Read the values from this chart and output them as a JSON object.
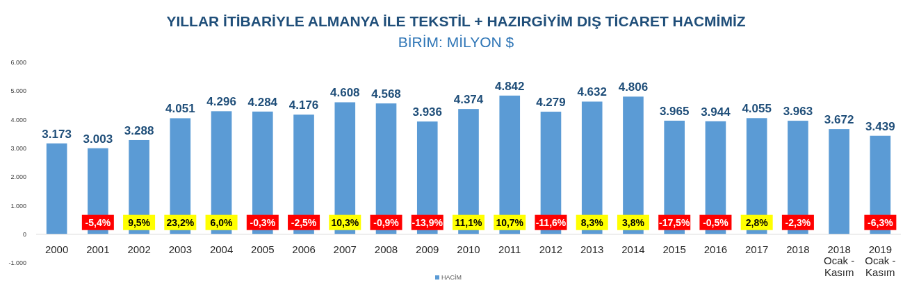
{
  "chart_data": {
    "type": "bar",
    "title": "YILLAR İTİBARİYLE ALMANYA İLE TEKSTİL + HAZIRGİYİM DIŞ TİCARET HACMİMİZ",
    "subtitle": "BİRİM: MİLYON $",
    "categories": [
      "2000",
      "2001",
      "2002",
      "2003",
      "2004",
      "2005",
      "2006",
      "2007",
      "2008",
      "2009",
      "2010",
      "2011",
      "2012",
      "2013",
      "2014",
      "2015",
      "2016",
      "2017",
      "2018",
      "2018\nOcak -\nKasım",
      "2019\nOcak -\nKasım"
    ],
    "series": [
      {
        "name": "HACİM",
        "color": "#5b9bd5",
        "values": [
          3173,
          3003,
          3288,
          4051,
          4296,
          4284,
          4176,
          4608,
          4568,
          3936,
          4374,
          4842,
          4279,
          4632,
          4806,
          3965,
          3944,
          4055,
          3963,
          3672,
          3439
        ]
      }
    ],
    "ylim": [
      -1000,
      6000
    ],
    "yticks": [
      {
        "value": -1000,
        "label": "-1.000"
      },
      0,
      {
        "value": 1000,
        "label": "1.000"
      },
      {
        "value": 2000,
        "label": "2.000"
      },
      {
        "value": 3000,
        "label": "3.000"
      },
      {
        "value": 4000,
        "label": "4.000"
      },
      {
        "value": 5000,
        "label": "5.000"
      },
      {
        "value": 6000,
        "label": "6.000"
      }
    ],
    "value_labels": [
      "3.173",
      "3.003",
      "3.288",
      "4.051",
      "4.296",
      "4.284",
      "4.176",
      "4.608",
      "4.568",
      "3.936",
      "4.374",
      "4.842",
      "4.279",
      "4.632",
      "4.806",
      "3.965",
      "3.944",
      "4.055",
      "3.963",
      "3.672",
      "3.439"
    ],
    "annotations": [
      null,
      "-5,4%",
      "9,5%",
      "23,2%",
      "6,0%",
      "-0,3%",
      "-2,5%",
      "10,3%",
      "-0,9%",
      "-13,9%",
      "11,1%",
      "10,7%",
      "-11,6%",
      "8,3%",
      "3,8%",
      "-17,5%",
      "-0,5%",
      "2,8%",
      "-2,3%",
      null,
      "-6,3%"
    ],
    "grid": false,
    "legend": "bottom"
  }
}
